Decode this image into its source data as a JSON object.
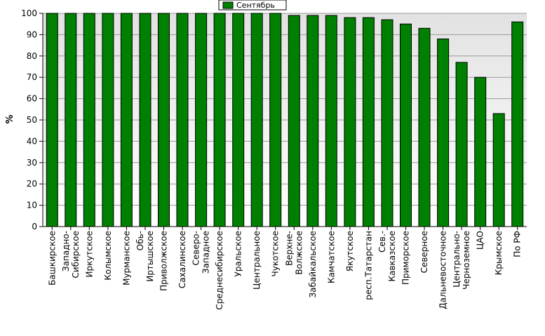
{
  "chart_data": {
    "type": "bar",
    "title": "",
    "xlabel": "",
    "ylabel": "%",
    "ylim": [
      0,
      100
    ],
    "yticks": [
      0,
      10,
      20,
      30,
      40,
      50,
      60,
      70,
      80,
      90,
      100
    ],
    "grid": true,
    "legend_position": "top",
    "categories": [
      "Башкирское",
      "Западно-Сибирское",
      "Иркутское",
      "Колымское",
      "Мурманское",
      "Обь-Иртышское",
      "Приволжское",
      "Сахалинское",
      "Северо-Западное",
      "Среднесибирское",
      "Уральское",
      "Центральное",
      "Чукотское",
      "Верхне-Волжское",
      "Забайкальское",
      "Камчатское",
      "Якутское",
      "респ.Татарстан",
      "Сев.-Кавказское",
      "Приморское",
      "Северное",
      "Дальневосточное",
      "Центрально-Черноземное",
      "ЦАО",
      "Крымское",
      "По РФ"
    ],
    "category_lines": [
      [
        "Башкирское"
      ],
      [
        "Западно-",
        "Сибирское"
      ],
      [
        "Иркутское"
      ],
      [
        "Колымское"
      ],
      [
        "Мурманское"
      ],
      [
        "Обь-",
        "Иртышское"
      ],
      [
        "Приволжское"
      ],
      [
        "Сахалинское"
      ],
      [
        "Северо-",
        "Западное"
      ],
      [
        "Среднесибирское"
      ],
      [
        "Уральское"
      ],
      [
        "Центральное"
      ],
      [
        "Чукотское"
      ],
      [
        "Верхне-",
        "Волжское"
      ],
      [
        "Забайкальское"
      ],
      [
        "Камчатское"
      ],
      [
        "Якутское"
      ],
      [
        "респ.Татарстан"
      ],
      [
        "Сев.-",
        "Кавказское"
      ],
      [
        "Приморское"
      ],
      [
        "Северное"
      ],
      [
        "Дальневосточное"
      ],
      [
        "Центрально-",
        "Черноземное"
      ],
      [
        "ЦАО"
      ],
      [
        "Крымское"
      ],
      [
        "По РФ"
      ]
    ],
    "series": [
      {
        "name": "Сентябрь",
        "color": "#008000",
        "values": [
          100,
          100,
          100,
          100,
          100,
          100,
          100,
          100,
          100,
          100,
          100,
          100,
          100,
          99,
          99,
          99,
          98,
          98,
          97,
          95,
          93,
          88,
          77,
          70,
          53,
          96
        ]
      }
    ]
  },
  "colors": {
    "bar": "#008000",
    "plot_background": "#ebebeb",
    "grid": "#9a9a9a"
  }
}
